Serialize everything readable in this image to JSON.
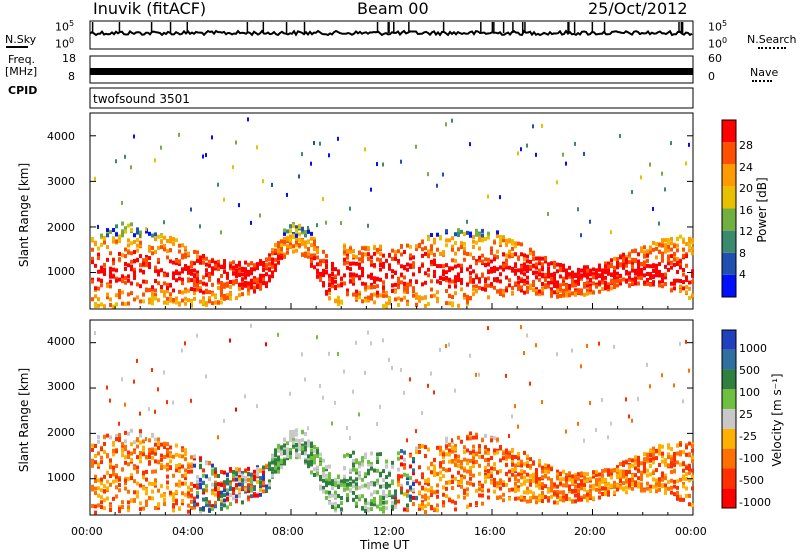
{
  "header": {
    "station": "Inuvik (fitACF)",
    "beam": "Beam 00",
    "date": "25/Oct/2012"
  },
  "side_labels": {
    "n_sky": "N.Sky",
    "freq": "Freq.",
    "mhz": "[MHz]",
    "cpid": "CPID",
    "n_search": "N.Search",
    "nave": "Nave"
  },
  "strip_ticks": {
    "noise_top_left": "10^5",
    "noise_bottom_left": "10^0",
    "noise_top_right": "10^5",
    "noise_bottom_right": "10^0",
    "freq_top": "18",
    "freq_bottom": "8",
    "nave_top": "60",
    "nave_bottom": "0"
  },
  "cpid_text": "twofsound 3501",
  "chart_data": [
    {
      "type": "heatmap",
      "title": "",
      "ylabel": "Slant Range [km]",
      "xlabel": "",
      "ylim": [
        200,
        4500
      ],
      "yticks": [
        "1000",
        "2000",
        "3000",
        "4000"
      ],
      "colorbar_label": "Power [dB]",
      "colorbar_ticks": [
        "4",
        "8",
        "12",
        "16",
        "20",
        "24",
        "28"
      ],
      "colors": [
        "#0010ff",
        "#2050b0",
        "#3a8a70",
        "#70b040",
        "#e8c000",
        "#ff9a00",
        "#ff5000",
        "#ff0000"
      ]
    },
    {
      "type": "heatmap",
      "title": "",
      "ylabel": "Slant Range [km]",
      "xlabel": "Time UT",
      "ylim": [
        200,
        4500
      ],
      "yticks": [
        "1000",
        "2000",
        "3000",
        "4000"
      ],
      "xticks": [
        "00:00",
        "04:00",
        "08:00",
        "12:00",
        "16:00",
        "20:00",
        "00:00"
      ],
      "colorbar_label": "Velocity [m s⁻¹]",
      "colorbar_ticks": [
        "1000",
        "500",
        "100",
        "25",
        "-25",
        "-100",
        "-500",
        "-1000"
      ],
      "colors": [
        "#2040c0",
        "#3070a0",
        "#2f7f3f",
        "#70c040",
        "#c8c8c8",
        "#ffb000",
        "#ff7000",
        "#ff3000",
        "#ff0000"
      ]
    }
  ]
}
